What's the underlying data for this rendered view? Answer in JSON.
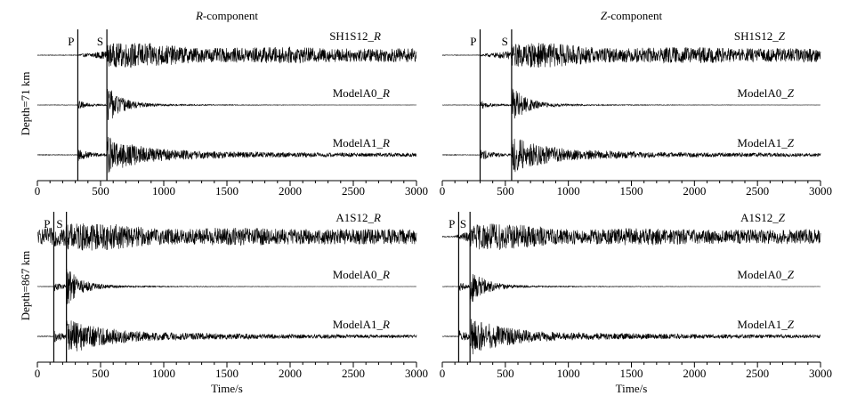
{
  "chart_data": [
    {
      "type": "line",
      "component": "R",
      "component_suffix": "-component",
      "row_label": "Depth=71 km",
      "xlabel": "",
      "xlim": [
        0,
        3000
      ],
      "x_ticks": [
        "0",
        "500",
        "1000",
        "1500",
        "2000",
        "2500",
        "3000"
      ],
      "phase_markers": [
        {
          "name": "P",
          "x": 320
        },
        {
          "name": "S",
          "x": 550
        }
      ],
      "series": [
        {
          "name": "SH1S12",
          "comp": "R",
          "onset": 320,
          "s_onset": 550,
          "amp": 0.85,
          "noise": 0.06,
          "style": "observed"
        },
        {
          "name": "ModelA0",
          "comp": "R",
          "onset": 320,
          "s_onset": 550,
          "amp": 0.95,
          "noise": 0.01,
          "style": "decay"
        },
        {
          "name": "ModelA1",
          "comp": "R",
          "onset": 320,
          "s_onset": 550,
          "amp": 0.8,
          "noise": 0.02,
          "style": "coda"
        }
      ]
    },
    {
      "type": "line",
      "component": "Z",
      "component_suffix": "-component",
      "row_label": "",
      "xlabel": "",
      "xlim": [
        0,
        3000
      ],
      "x_ticks": [
        "0",
        "500",
        "1000",
        "1500",
        "2000",
        "2500",
        "3000"
      ],
      "phase_markers": [
        {
          "name": "P",
          "x": 300
        },
        {
          "name": "S",
          "x": 550
        }
      ],
      "series": [
        {
          "name": "SH1S12",
          "comp": "Z",
          "onset": 300,
          "s_onset": 550,
          "amp": 0.85,
          "noise": 0.06,
          "style": "observed"
        },
        {
          "name": "ModelA0",
          "comp": "Z",
          "onset": 300,
          "s_onset": 550,
          "amp": 0.95,
          "noise": 0.01,
          "style": "decay"
        },
        {
          "name": "ModelA1",
          "comp": "Z",
          "onset": 300,
          "s_onset": 550,
          "amp": 0.8,
          "noise": 0.02,
          "style": "coda"
        }
      ]
    },
    {
      "type": "line",
      "component": "",
      "component_suffix": "",
      "row_label": "Depth=867 km",
      "xlabel": "Time/s",
      "xlim": [
        0,
        3000
      ],
      "x_ticks": [
        "0",
        "500",
        "1000",
        "1500",
        "2000",
        "2500",
        "3000"
      ],
      "phase_markers": [
        {
          "name": "P",
          "x": 130
        },
        {
          "name": "S",
          "x": 230
        }
      ],
      "series": [
        {
          "name": "A1S12",
          "comp": "R",
          "onset": 0,
          "s_onset": 230,
          "amp": 0.95,
          "noise": 0.45,
          "style": "observed"
        },
        {
          "name": "ModelA0",
          "comp": "R",
          "onset": 130,
          "s_onset": 230,
          "amp": 0.95,
          "noise": 0.01,
          "style": "decay"
        },
        {
          "name": "ModelA1",
          "comp": "R",
          "onset": 130,
          "s_onset": 230,
          "amp": 0.85,
          "noise": 0.02,
          "style": "coda"
        }
      ]
    },
    {
      "type": "line",
      "component": "",
      "component_suffix": "",
      "row_label": "",
      "xlabel": "Time/s",
      "xlim": [
        0,
        3000
      ],
      "x_ticks": [
        "0",
        "500",
        "1000",
        "1500",
        "2000",
        "2500",
        "3000"
      ],
      "phase_markers": [
        {
          "name": "P",
          "x": 130
        },
        {
          "name": "S",
          "x": 220
        }
      ],
      "series": [
        {
          "name": "A1S12",
          "comp": "Z",
          "onset": 100,
          "s_onset": 220,
          "amp": 0.9,
          "noise": 0.1,
          "style": "observed"
        },
        {
          "name": "ModelA0",
          "comp": "Z",
          "onset": 130,
          "s_onset": 220,
          "amp": 0.95,
          "noise": 0.01,
          "style": "decay"
        },
        {
          "name": "ModelA1",
          "comp": "Z",
          "onset": 130,
          "s_onset": 220,
          "amp": 0.85,
          "noise": 0.02,
          "style": "coda"
        }
      ]
    }
  ]
}
